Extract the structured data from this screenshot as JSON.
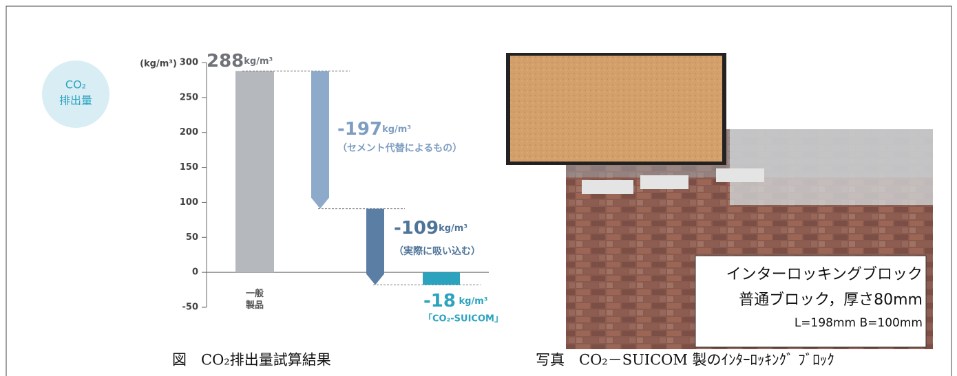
{
  "badge": {
    "lines": [
      "CO₂",
      "排出量"
    ]
  },
  "chart_data": {
    "type": "waterfall",
    "y_label": "(kg/m³)",
    "categories": [
      "一般製品",
      null,
      null,
      "「CO₂-SUICOM」"
    ],
    "values": [
      288,
      -197,
      -109,
      -18
    ],
    "value_labels": [
      "288kg/m³",
      "-197kg/m³",
      "-109kg/m³",
      "-18 kg/m³"
    ],
    "measure": [
      "absolute",
      "relative",
      "relative",
      "total"
    ],
    "colors": [
      "#b5b8bd",
      "#8eaacb",
      "#5a7ea4",
      "#2ba3bf"
    ],
    "label_colors": [
      "#6f7278",
      "#7d9dc1",
      "#4f7499",
      "#2ba3bf"
    ],
    "annotations": [
      null,
      "（セメント代替によるもの）",
      "（実際に吸い込む）",
      null
    ],
    "ylim": [
      -50,
      300
    ],
    "yticks": [
      -50,
      0,
      50,
      100,
      150,
      200,
      250,
      300
    ]
  },
  "figure_caption": "図　CO₂排出量試算結果",
  "photo": {
    "caption": "写真　CO₂－SUICOM 製のｲﾝﾀｰﾛｯｷﾝｸﾞ ﾌﾞﾛｯｸ",
    "label_lines": [
      "インターロッキングブロック",
      "普通ブロック，厚さ80mm",
      "L=198mm  B=100mm"
    ]
  }
}
